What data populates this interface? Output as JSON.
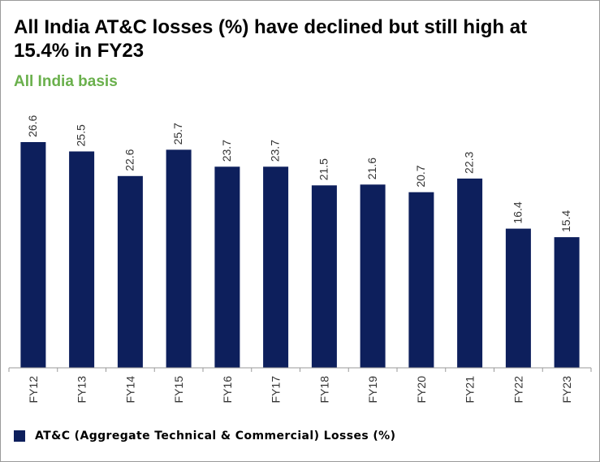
{
  "title": "All India AT&C losses (%) have declined but still high at 15.4% in FY23",
  "subtitle": "All India basis",
  "colors": {
    "bar": "#0d1f5c",
    "subtitle": "#6ab04c",
    "axis": "#9a9a9a"
  },
  "chart_data": {
    "type": "bar",
    "categories": [
      "FY12",
      "FY13",
      "FY14",
      "FY15",
      "FY16",
      "FY17",
      "FY18",
      "FY19",
      "FY20",
      "FY21",
      "FY22",
      "FY23"
    ],
    "series": [
      {
        "name": "AT&C (Aggregate Technical & Commercial) Losses (%)",
        "values": [
          26.6,
          25.5,
          22.6,
          25.7,
          23.7,
          23.7,
          21.5,
          21.6,
          20.7,
          22.3,
          16.4,
          15.4
        ]
      }
    ],
    "ylim": [
      0,
      26.6
    ],
    "grid": false,
    "data_labels": true,
    "legend_position": "bottom-left"
  }
}
